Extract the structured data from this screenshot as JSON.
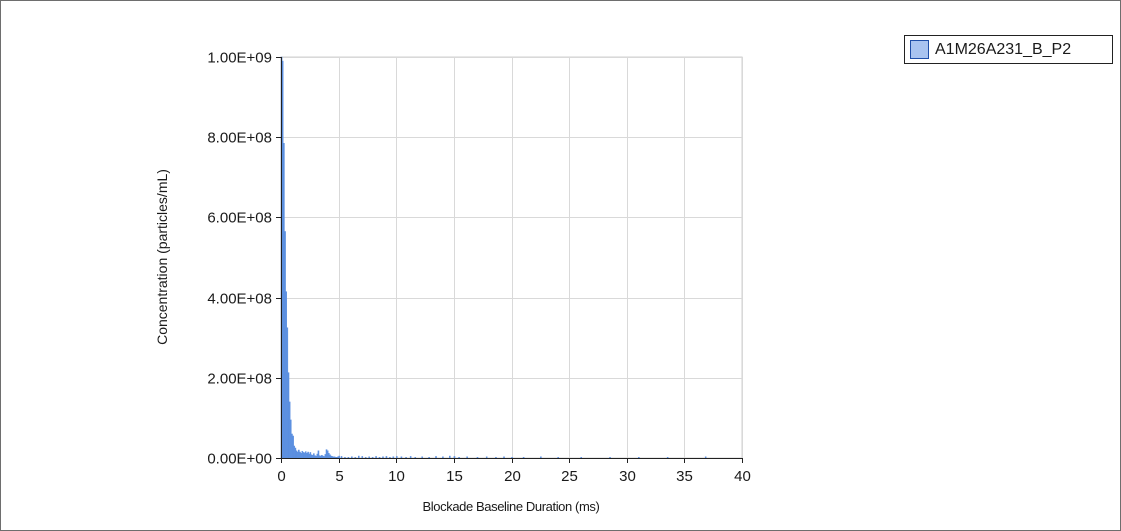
{
  "chart_data": {
    "type": "bar",
    "title": "",
    "xlabel": "Blockade Baseline Duration (ms)",
    "ylabel": "Concentration  (particles/mL)",
    "xlim": [
      0,
      40
    ],
    "ylim": [
      0,
      1000000000
    ],
    "x_ticks": [
      "0",
      "5",
      "10",
      "15",
      "20",
      "25",
      "30",
      "35",
      "40"
    ],
    "y_ticks": [
      "0.00E+00",
      "2.00E+08",
      "4.00E+08",
      "6.00E+08",
      "8.00E+08",
      "1.00E+09"
    ],
    "grid": true,
    "legend_position": "top-right",
    "bin_width": 0.1,
    "series": [
      {
        "name": "A1M26A231_B_P2",
        "color": "#5b8fe0",
        "edge_color": "#1f4fa8",
        "x": [
          0.0,
          0.1,
          0.2,
          0.3,
          0.4,
          0.5,
          0.6,
          0.7,
          0.8,
          0.9,
          1.0,
          1.1,
          1.2,
          1.3,
          1.4,
          1.5,
          1.6,
          1.7,
          1.8,
          1.9,
          2.0,
          2.1,
          2.2,
          2.3,
          2.4,
          2.5,
          2.6,
          2.7,
          2.8,
          2.9,
          3.0,
          3.1,
          3.2,
          3.3,
          3.4,
          3.5,
          3.6,
          3.7,
          3.8,
          3.9,
          4.0,
          4.1,
          4.2,
          4.3,
          4.4,
          4.5,
          4.6,
          4.7,
          4.8,
          4.9,
          5.0,
          5.2,
          5.5,
          5.8,
          6.1,
          6.4,
          6.7,
          7.0,
          7.3,
          7.6,
          7.9,
          8.2,
          8.5,
          8.8,
          9.1,
          9.4,
          9.7,
          10.0,
          10.4,
          10.8,
          11.2,
          11.6,
          12.2,
          12.8,
          13.4,
          14.0,
          14.6,
          15.0,
          15.4,
          16.1,
          17.0,
          17.8,
          18.6,
          19.3,
          20.0,
          21.0,
          22.5,
          24.0,
          26.0,
          28.5,
          31.0,
          33.5,
          36.8
        ],
        "values": [
          1000000000,
          990000000,
          785000000,
          565000000,
          415000000,
          325000000,
          213000000,
          140000000,
          95000000,
          60000000,
          55000000,
          30000000,
          25000000,
          18000000,
          15000000,
          20000000,
          15000000,
          12000000,
          17000000,
          14000000,
          13000000,
          16000000,
          12000000,
          15000000,
          10000000,
          14000000,
          8000000,
          7000000,
          11000000,
          6000000,
          5000000,
          10000000,
          18000000,
          6000000,
          5000000,
          7000000,
          5000000,
          4000000,
          9000000,
          21000000,
          18000000,
          12000000,
          8000000,
          5000000,
          4000000,
          3000000,
          3000000,
          2000000,
          2000000,
          3000000,
          5000000,
          4000000,
          2000000,
          2000000,
          3000000,
          2000000,
          5000000,
          4000000,
          2000000,
          3000000,
          2000000,
          4000000,
          2000000,
          3000000,
          4000000,
          2000000,
          3000000,
          4000000,
          3000000,
          2000000,
          4000000,
          2000000,
          3000000,
          2000000,
          4000000,
          3000000,
          5000000,
          4000000,
          2000000,
          3000000,
          2000000,
          3000000,
          2000000,
          3000000,
          2000000,
          2000000,
          3000000,
          2000000,
          2000000,
          2000000,
          2000000,
          2000000,
          3000000
        ]
      }
    ]
  }
}
